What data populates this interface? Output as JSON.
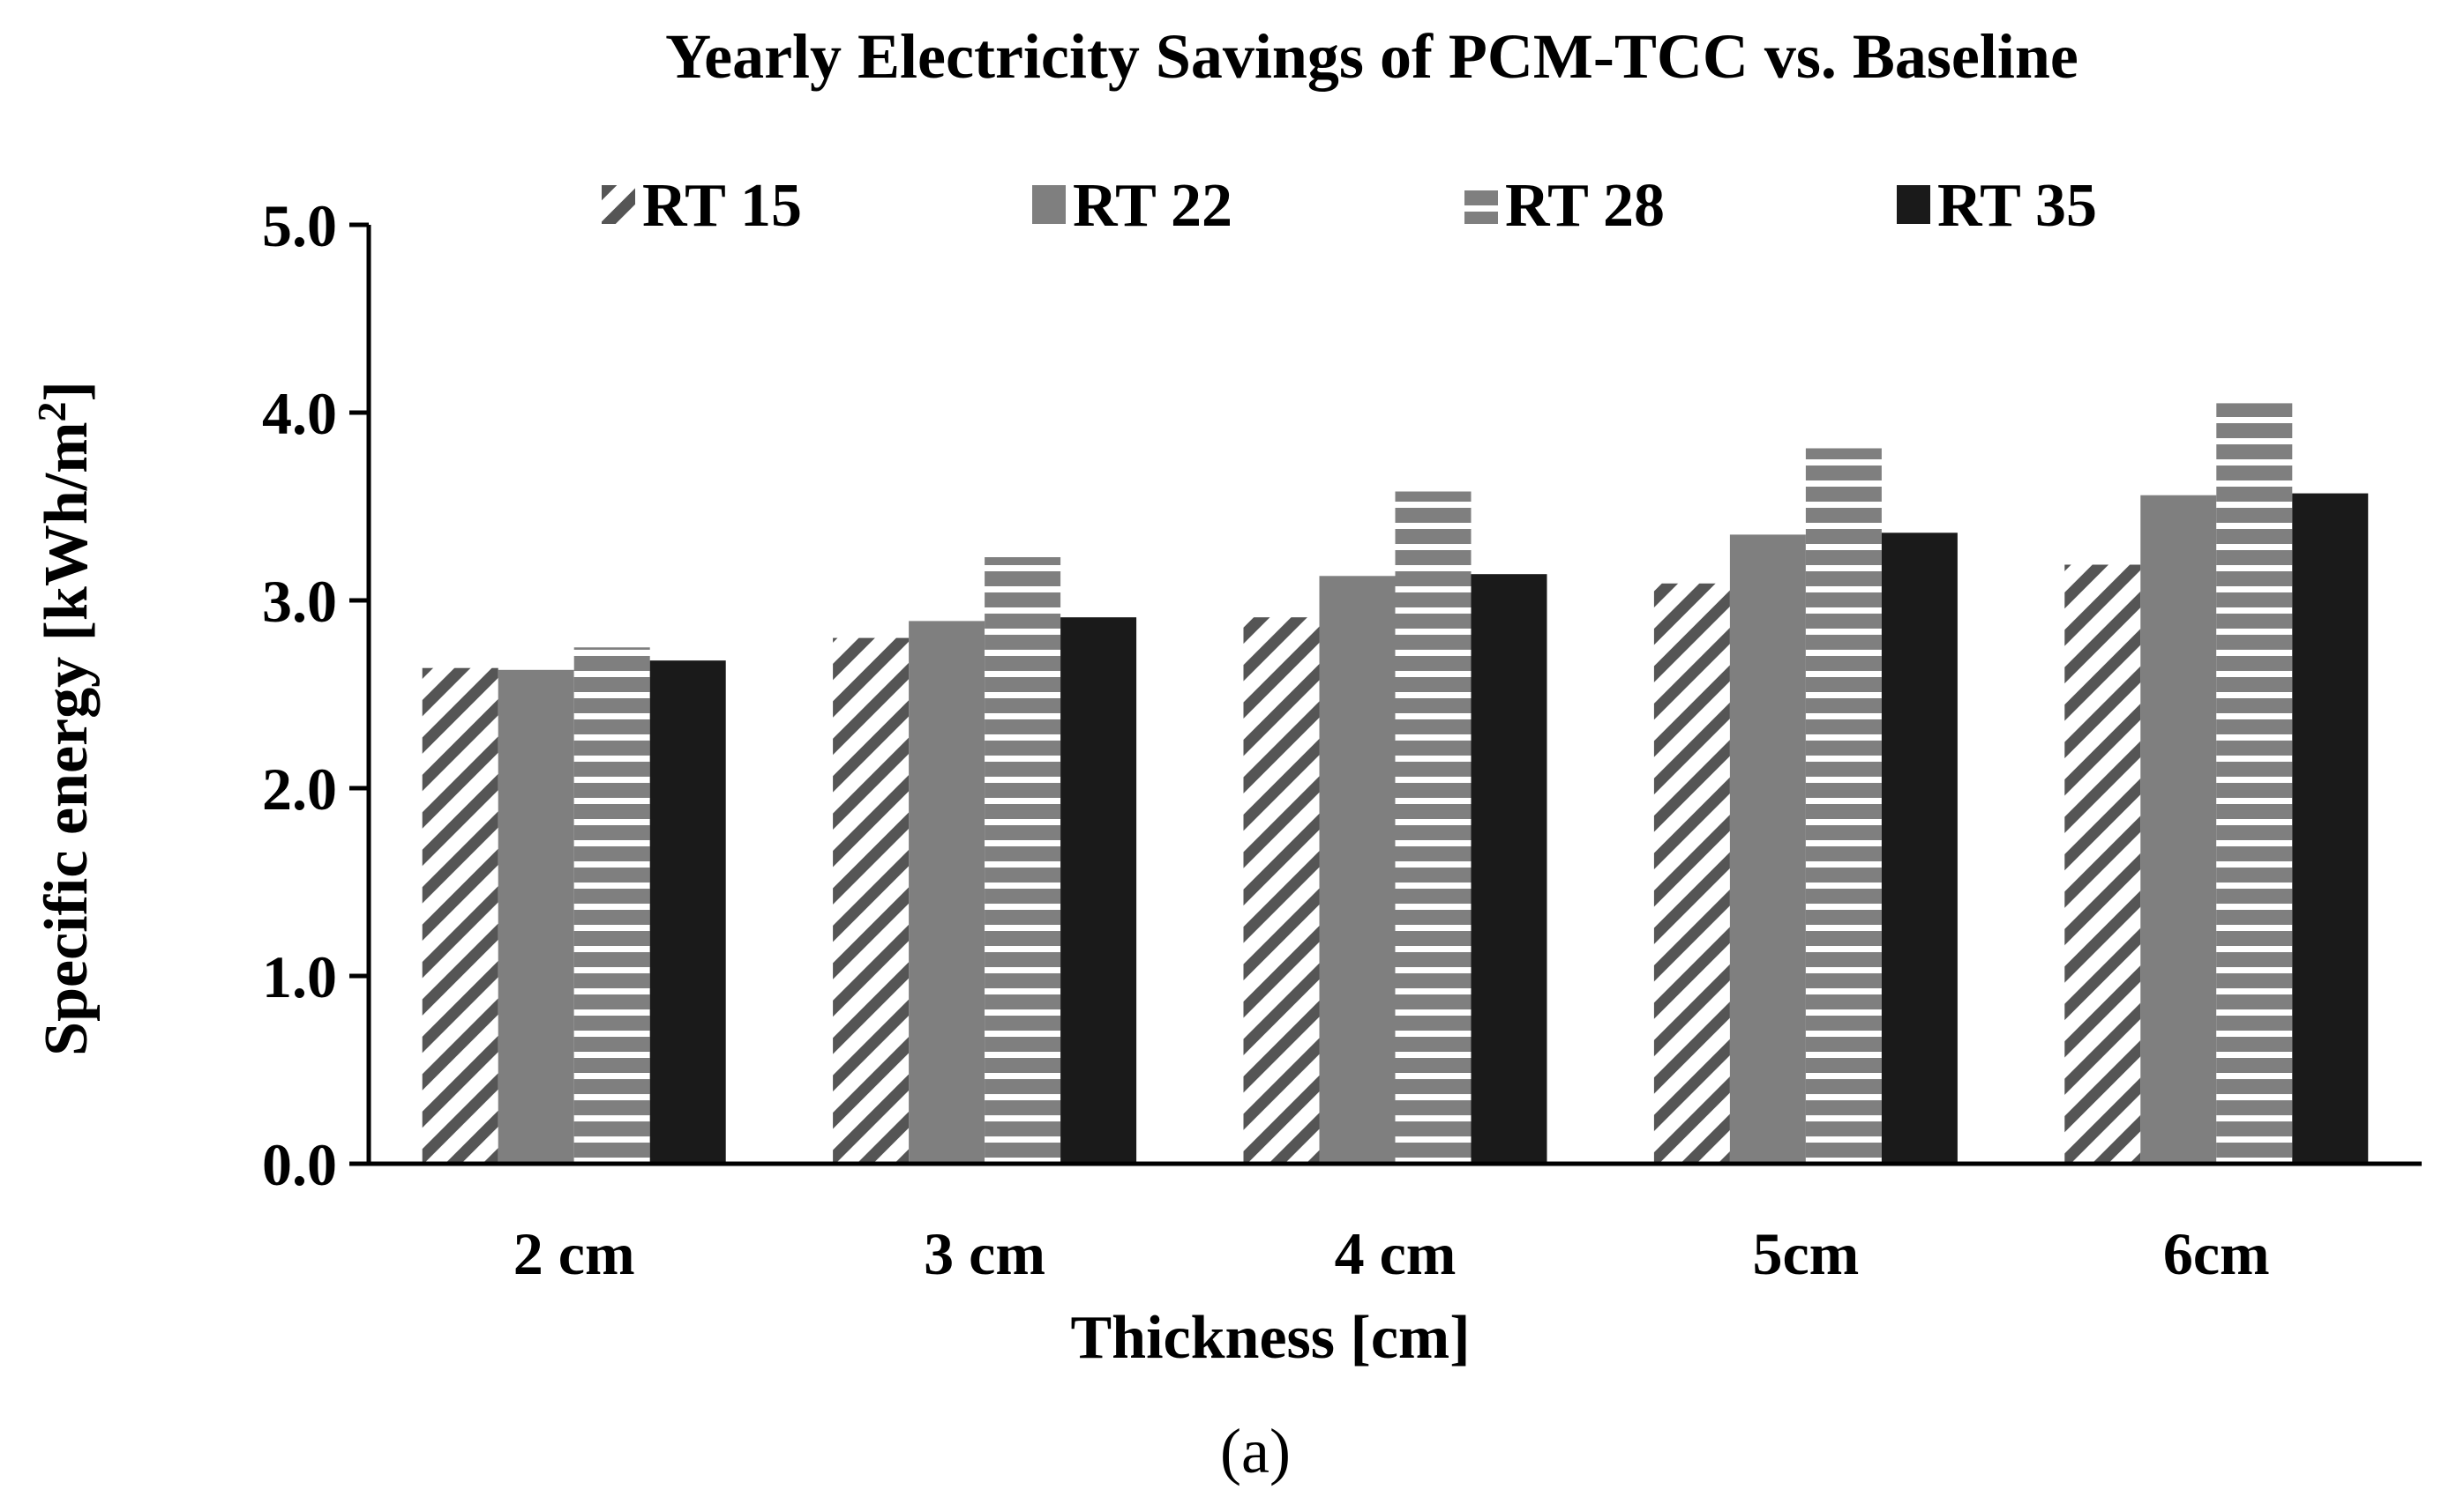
{
  "chart_data": {
    "type": "bar",
    "title": "Yearly Electricity Savings of PCM-TCC vs. Baseline",
    "xlabel": "Thickness [cm]",
    "ylabel_main": "Specific energy [kWh/m",
    "ylabel_sup": "2",
    "ylabel_end": "]",
    "caption": "(a)",
    "categories": [
      "2 cm",
      "3 cm",
      "4 cm",
      "5cm",
      "6cm"
    ],
    "ylim": [
      0,
      5
    ],
    "yticks": [
      "0.0",
      "1.0",
      "2.0",
      "3.0",
      "4.0",
      "5.0"
    ],
    "legend_position": "top",
    "series": [
      {
        "name": "RT 15",
        "pattern": "diagonal-hatch",
        "color": "#555555",
        "values": [
          2.64,
          2.8,
          2.91,
          3.09,
          3.19
        ]
      },
      {
        "name": "RT 22",
        "pattern": "solid",
        "color": "#7f7f7f",
        "values": [
          2.63,
          2.89,
          3.13,
          3.35,
          3.56
        ]
      },
      {
        "name": "RT 28",
        "pattern": "horizontal-stripes",
        "color": "#7f7f7f",
        "values": [
          2.75,
          3.23,
          3.58,
          3.81,
          4.05
        ]
      },
      {
        "name": "RT 35",
        "pattern": "solid",
        "color": "#1a1a1a",
        "values": [
          2.68,
          2.91,
          3.14,
          3.36,
          3.57
        ]
      }
    ]
  }
}
